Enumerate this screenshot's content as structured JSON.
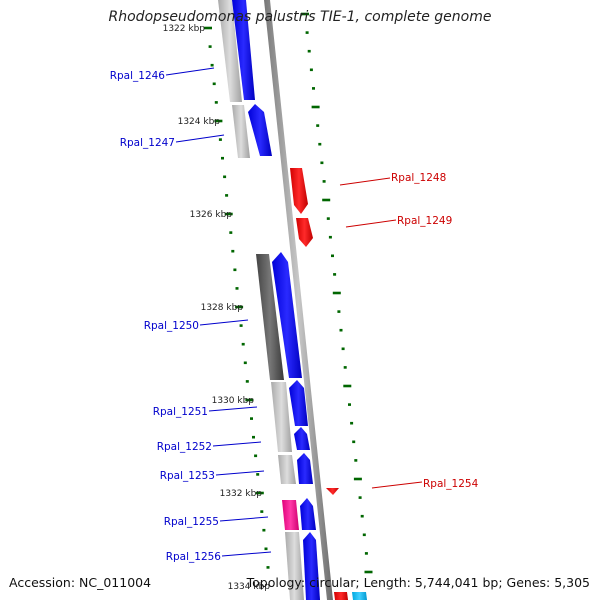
{
  "title": "Rhodopseudomonas palustris TIE-1, complete genome",
  "footer": {
    "accession": "Accession: NC_011004",
    "summary": "Topology: circular; Length: 5,744,041 bp; Genes: 5,305"
  },
  "ticks": [
    "1322 kbp",
    "1324 kbp",
    "1326 kbp",
    "1328 kbp",
    "1330 kbp",
    "1332 kbp",
    "1334 kbp"
  ],
  "genes": {
    "reverse": [
      "Rpal_1246",
      "Rpal_1247",
      "Rpal_1250",
      "Rpal_1251",
      "Rpal_1252",
      "Rpal_1253",
      "Rpal_1255",
      "Rpal_1256"
    ],
    "forward": [
      "Rpal_1248",
      "Rpal_1249",
      "Rpal_1254"
    ]
  },
  "colors": {
    "forward_gene": "#ff0000",
    "reverse_gene": "#0000ff",
    "cog_dark": "#555555",
    "cog_light": "#bbbbbb",
    "cog_magenta": "#ff1493",
    "cog_cyan": "#00bfff",
    "backbone": "#888888",
    "tick": "#006600",
    "forward_label": "#cc0000",
    "reverse_label": "#0000cc"
  }
}
